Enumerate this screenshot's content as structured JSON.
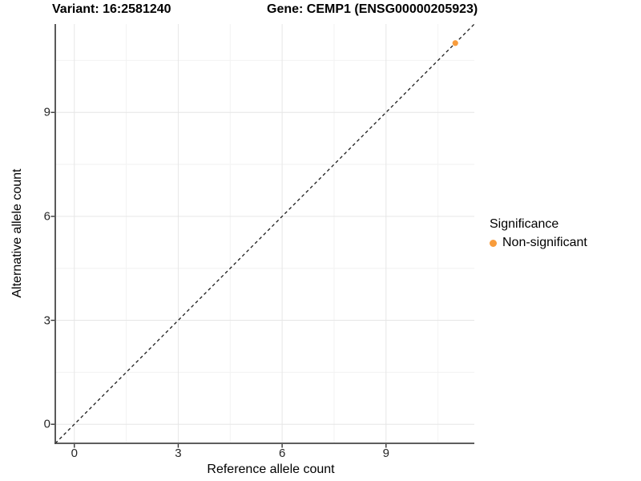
{
  "chart_data": {
    "type": "scatter",
    "titles": {
      "left": "Variant: 16:2581240",
      "right": "Gene: CEMP1 (ENSG00000205923)"
    },
    "xlabel": "Reference allele count",
    "ylabel": "Alternative allele count",
    "x_ticks": [
      0,
      3,
      6,
      9
    ],
    "y_ticks": [
      0,
      3,
      6,
      9
    ],
    "x_minor_ticks": [
      1.5,
      4.5,
      7.5,
      10.5
    ],
    "y_minor_ticks": [
      1.5,
      4.5,
      7.5,
      10.5
    ],
    "xlim": [
      -0.55,
      11.55
    ],
    "ylim": [
      -0.55,
      11.55
    ],
    "grid": "major+minor, light gray on white panel",
    "series": [
      {
        "name": "Non-significant",
        "color": "#F89C3C",
        "points": [
          {
            "x": 11,
            "y": 11
          }
        ]
      }
    ],
    "reference_line": {
      "type": "identity y=x",
      "style": "dashed",
      "color": "#1A1A1A"
    },
    "legend": {
      "title": "Significance",
      "position": "right",
      "entries": [
        {
          "label": "Non-significant",
          "color": "#F89C3C"
        }
      ]
    },
    "colors": {
      "background": "#FFFFFF",
      "grid_major": "#E6E6E6",
      "grid_minor": "#F2F2F2",
      "axis_line": "#474747",
      "tick_mark": "#333333",
      "point": "#F89C3C",
      "text": "#000000"
    }
  }
}
